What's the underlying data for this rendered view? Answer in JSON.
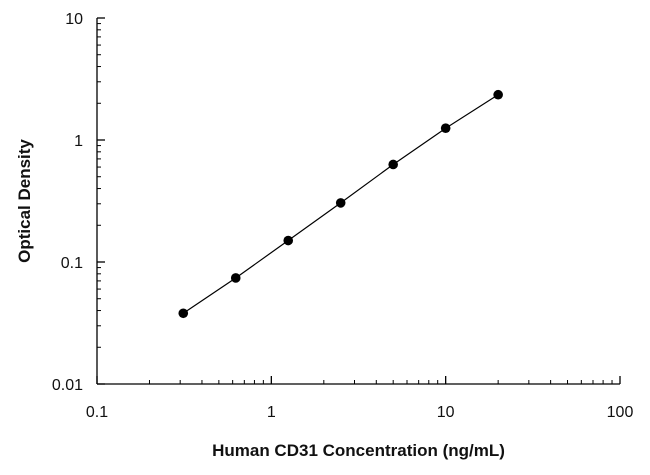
{
  "chart_data": {
    "type": "scatter",
    "title": "",
    "xlabel": "Human CD31 Concentration (ng/mL)",
    "ylabel": "Optical Density",
    "x_scale": "log",
    "y_scale": "log",
    "xlim": [
      0.1,
      100
    ],
    "ylim": [
      0.01,
      10
    ],
    "x_ticks": [
      0.1,
      1,
      10,
      100
    ],
    "x_tick_labels": [
      "0.1",
      "1",
      "10",
      "100"
    ],
    "y_ticks": [
      0.01,
      0.1,
      1,
      10
    ],
    "y_tick_labels": [
      "0.01",
      "0.1",
      "1",
      "10"
    ],
    "grid": false,
    "legend": "none",
    "series": [
      {
        "x": [
          0.3125,
          0.625,
          1.25,
          2.5,
          5,
          10,
          20
        ],
        "y": [
          0.038,
          0.074,
          0.15,
          0.305,
          0.63,
          1.25,
          2.35
        ],
        "marker": "circle",
        "line": true,
        "color": "#000000"
      }
    ]
  }
}
